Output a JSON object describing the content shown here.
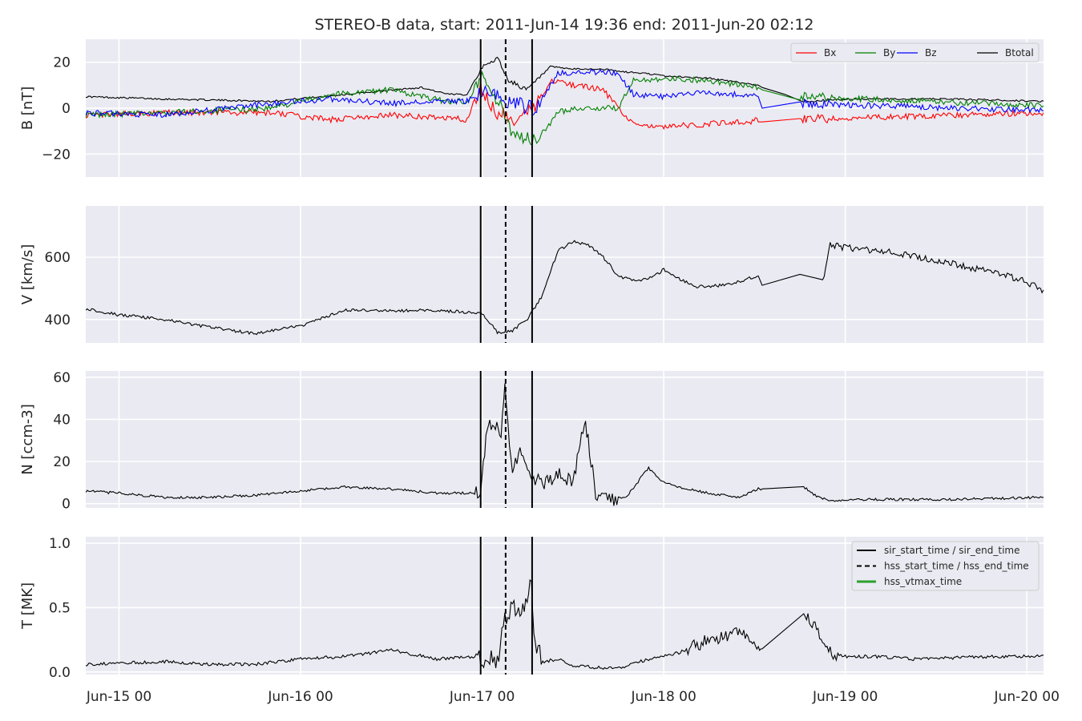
{
  "figure": {
    "title": "STEREO-B data, start: 2011-Jun-14 19:36  end: 2011-Jun-20 02:12",
    "time_ticks": [
      "Jun-15 00",
      "Jun-16 00",
      "Jun-17 00",
      "Jun-18 00",
      "Jun-19 00",
      "Jun-20 00"
    ]
  },
  "chart_data": [
    {
      "type": "line",
      "ylabel": "B [nT]",
      "ylim": [
        -30,
        30
      ],
      "yticks": [
        -20,
        0,
        20
      ],
      "ytick_labels": [
        "−20",
        "0",
        "20"
      ],
      "grid": true,
      "legend": {
        "placement": "top-right",
        "entries": [
          "Bx",
          "By",
          "Bz",
          "Btotal"
        ]
      },
      "x_unit": "hours from 2011-Jun-15 00:00",
      "series": [
        {
          "name": "Btotal",
          "color": "#000000",
          "x": [
            -4.4,
            6,
            20,
            30,
            40,
            43.5,
            46,
            47.8,
            50,
            51.5,
            54,
            57,
            60,
            62,
            64,
            66,
            70,
            72,
            78,
            84.5,
            85,
            88,
            90.5,
            97,
            110,
            122,
            122.2
          ],
          "y": [
            5,
            4,
            3,
            6,
            9,
            6,
            6,
            17,
            22,
            12,
            8,
            18,
            17,
            17,
            17,
            16,
            15,
            14,
            13,
            10,
            9,
            6,
            3,
            4,
            4,
            3,
            3
          ]
        },
        {
          "name": "Bx",
          "color": "#ff0000",
          "x": [
            -4.4,
            6,
            20,
            28,
            36,
            43,
            46,
            47.8,
            49,
            52,
            55,
            57,
            60,
            64,
            66,
            68,
            72,
            78,
            80,
            84.5,
            85,
            90,
            122.2
          ],
          "y": [
            -3,
            -2,
            -2,
            -5,
            -3,
            -4,
            -5,
            10,
            0,
            -5,
            0,
            12,
            10,
            8,
            0,
            -7,
            -8,
            -7,
            -6,
            -6,
            -6,
            -5,
            -2
          ]
        },
        {
          "name": "By",
          "color": "#008000",
          "x": [
            -4.4,
            6,
            20,
            28,
            36,
            43,
            46,
            48,
            52,
            55,
            58,
            60,
            66,
            68,
            72,
            78,
            84.5,
            85,
            90,
            122.2
          ],
          "y": [
            -3,
            -2,
            0,
            6,
            8,
            3,
            3,
            15,
            -10,
            -15,
            -2,
            0,
            0,
            12,
            13,
            12,
            9,
            8,
            5,
            1
          ]
        },
        {
          "name": "Bz",
          "color": "#0000ff",
          "x": [
            -4.4,
            6,
            20,
            28,
            36,
            43,
            46,
            48,
            52,
            55,
            58,
            62,
            66,
            68,
            72,
            78,
            84.5,
            85,
            90,
            122.2
          ],
          "y": [
            -2,
            -3,
            2,
            4,
            2,
            3,
            3,
            8,
            2,
            0,
            15,
            16,
            15,
            6,
            5,
            7,
            5,
            0,
            2,
            -1
          ]
        }
      ]
    },
    {
      "type": "line",
      "ylabel": "V [km/s]",
      "ylim": [
        325,
        765
      ],
      "yticks": [
        400,
        600
      ],
      "ytick_labels": [
        "400",
        "600"
      ],
      "grid": true,
      "series": [
        {
          "name": "",
          "color": "#000000",
          "x": [
            -4.4,
            0,
            6,
            12,
            18,
            24,
            30,
            36,
            42,
            48,
            50,
            50.5,
            52,
            54,
            56,
            58,
            60,
            62,
            64,
            66,
            68,
            70,
            72,
            76,
            80,
            84.5,
            85,
            90,
            93,
            94,
            96,
            100,
            104,
            108,
            112,
            116,
            120,
            122.2
          ],
          "y": [
            435,
            415,
            400,
            375,
            355,
            380,
            430,
            428,
            430,
            420,
            360,
            355,
            365,
            400,
            480,
            620,
            650,
            640,
            600,
            540,
            525,
            530,
            560,
            505,
            510,
            540,
            510,
            545,
            520,
            640,
            630,
            620,
            610,
            590,
            570,
            550,
            520,
            495
          ]
        }
      ]
    },
    {
      "type": "line",
      "ylabel": "N [ccm-3]",
      "ylim": [
        -2,
        63
      ],
      "yticks": [
        0,
        20,
        40,
        60
      ],
      "ytick_labels": [
        "0",
        "20",
        "40",
        "60"
      ],
      "grid": true,
      "series": [
        {
          "name": "",
          "color": "#000000",
          "x": [
            -4.4,
            0,
            6,
            12,
            18,
            24,
            30,
            36,
            42,
            47.8,
            48.5,
            49,
            50.5,
            51,
            52,
            53,
            55,
            56,
            58,
            60,
            61.5,
            62,
            63,
            64,
            67,
            70,
            72,
            75,
            78,
            82,
            84.5,
            85,
            90.5,
            92,
            94,
            96,
            100,
            110,
            122.2
          ],
          "y": [
            6,
            5,
            3,
            3,
            4,
            6,
            8,
            7,
            5,
            5,
            30,
            38,
            34,
            55,
            15,
            25,
            12,
            10,
            14,
            10,
            40,
            30,
            5,
            2,
            3,
            17,
            10,
            7,
            5,
            3,
            7,
            7,
            8,
            4,
            1,
            2,
            2,
            2,
            3
          ]
        }
      ]
    },
    {
      "type": "line",
      "ylabel": "T [MK]",
      "ylim": [
        -0.02,
        1.05
      ],
      "yticks": [
        0.0,
        0.5,
        1.0
      ],
      "ytick_labels": [
        "0.0",
        "0.5",
        "1.0"
      ],
      "grid": true,
      "legend": {
        "placement": "top-right",
        "entries": [
          "sir_start_time / sir_end_time",
          "hss_start_time / hss_end_time",
          "hss_vtmax_time"
        ]
      },
      "series": [
        {
          "name": "",
          "color": "#000000",
          "x": [
            -4.4,
            6,
            12,
            18,
            24,
            30,
            36,
            42,
            46,
            47.8,
            50,
            51,
            52,
            53,
            54.5,
            55,
            56,
            58,
            60,
            64,
            66,
            70,
            74,
            78,
            82,
            84.5,
            85,
            90.5,
            92,
            94,
            96,
            100,
            105,
            110,
            115,
            120,
            122.2
          ],
          "y": [
            0.06,
            0.08,
            0.06,
            0.06,
            0.1,
            0.12,
            0.17,
            0.1,
            0.12,
            0.1,
            0.08,
            0.4,
            0.55,
            0.45,
            0.7,
            0.2,
            0.08,
            0.1,
            0.05,
            0.03,
            0.03,
            0.1,
            0.15,
            0.25,
            0.3,
            0.2,
            0.18,
            0.45,
            0.35,
            0.15,
            0.12,
            0.12,
            0.1,
            0.11,
            0.12,
            0.12,
            0.13
          ]
        }
      ]
    }
  ],
  "events": {
    "sir_start_time": 47.8,
    "hss_start_time": 51.1,
    "sir_end_time": 54.6,
    "styles": {
      "sir": "#000000",
      "hss": "#000000",
      "hss_vtmax": "#2ca02c"
    }
  }
}
